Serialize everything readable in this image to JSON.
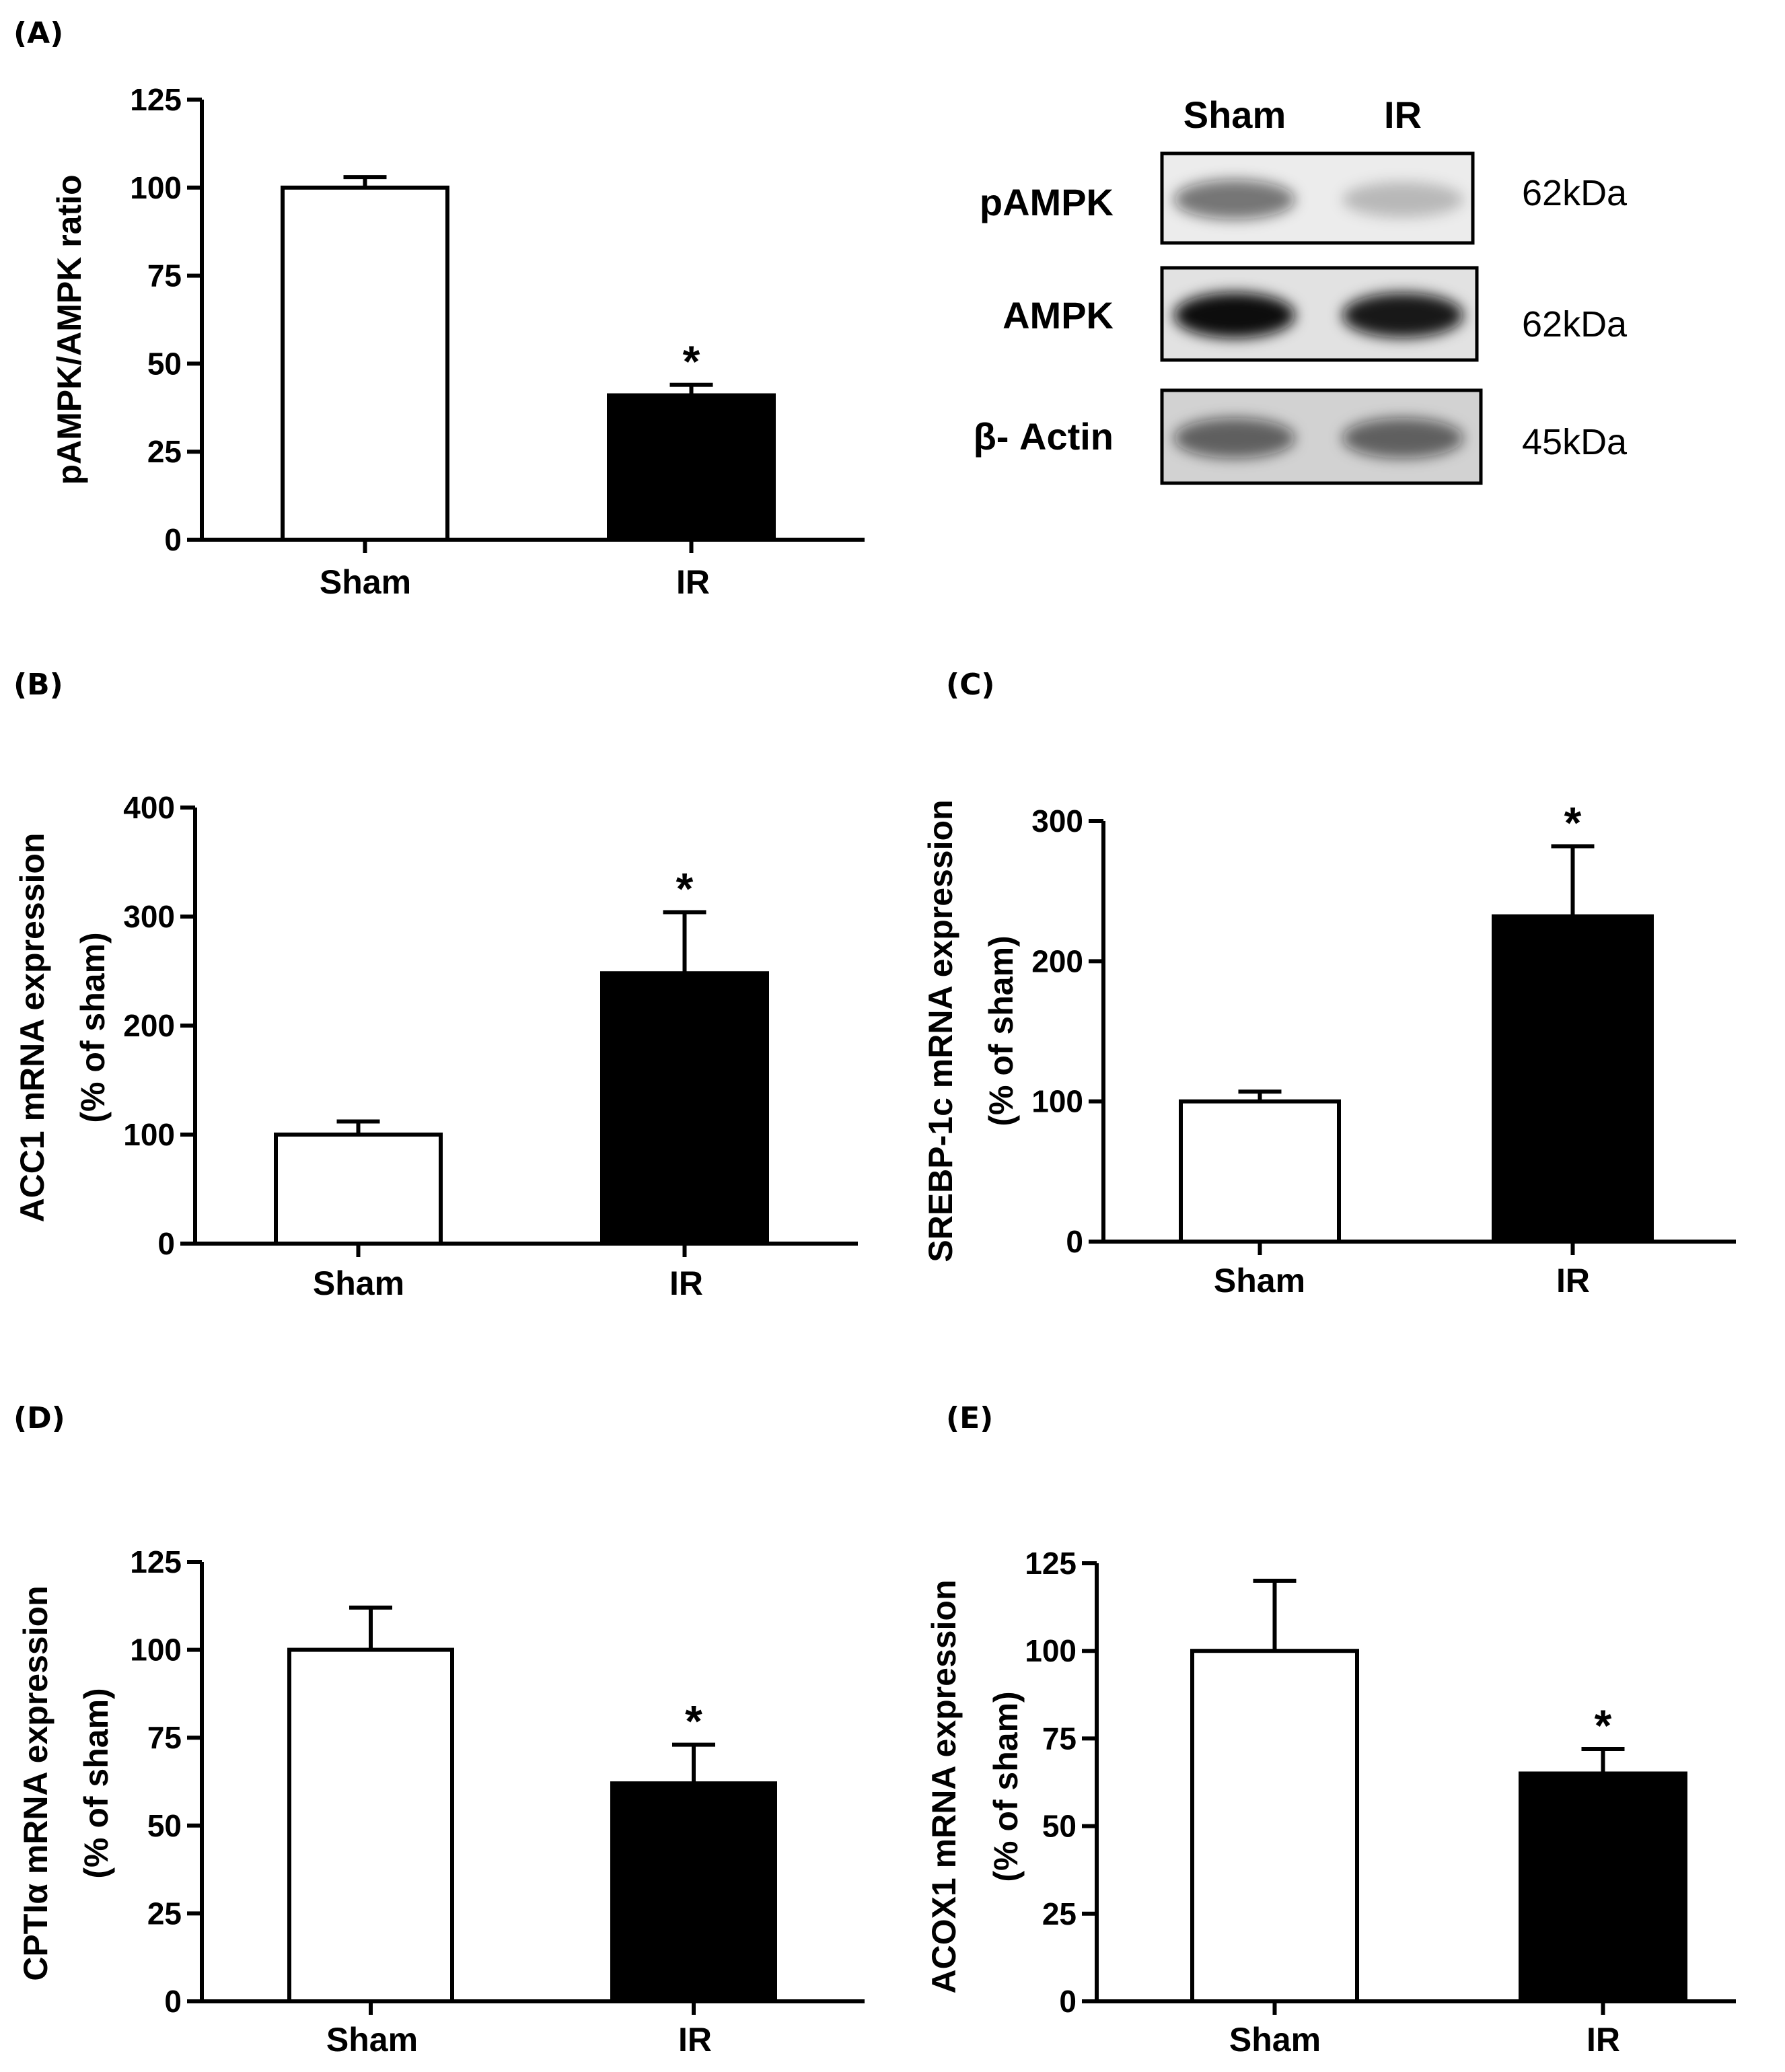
{
  "chart_data": [
    {
      "panel": "(A)",
      "type": "bar",
      "categories": [
        "Sham",
        "IR"
      ],
      "values": [
        100,
        41
      ],
      "errors": [
        3,
        3
      ],
      "significance": [
        "",
        "*"
      ],
      "bar_colors": [
        "#ffffff",
        "#000000"
      ],
      "ylabel": "pAMPK/AMPK ratio",
      "ylim": [
        0,
        125
      ],
      "yticks": [
        "0",
        "25",
        "50",
        "75",
        "100",
        "125"
      ],
      "ytick_values": [
        0,
        25,
        50,
        75,
        100,
        125
      ]
    },
    {
      "panel": "(B)",
      "type": "bar",
      "categories": [
        "Sham",
        "IR"
      ],
      "values": [
        100,
        248
      ],
      "errors": [
        12,
        56
      ],
      "significance": [
        "",
        "*"
      ],
      "bar_colors": [
        "#ffffff",
        "#000000"
      ],
      "ylabel": "ACC1 mRNA expression",
      "ylabel2": "(% of sham)",
      "ylim": [
        0,
        400
      ],
      "yticks": [
        "0",
        "100",
        "200",
        "300",
        "400"
      ],
      "ytick_values": [
        0,
        100,
        200,
        300,
        400
      ]
    },
    {
      "panel": "(C)",
      "type": "bar",
      "categories": [
        "Sham",
        "IR"
      ],
      "values": [
        100,
        232
      ],
      "errors": [
        7,
        50
      ],
      "significance": [
        "",
        "*"
      ],
      "bar_colors": [
        "#ffffff",
        "#000000"
      ],
      "ylabel": "SREBP-1c mRNA expression",
      "ylabel2": "(% of sham)",
      "ylim": [
        0,
        300
      ],
      "yticks": [
        "0",
        "100",
        "200",
        "300"
      ],
      "ytick_values": [
        0,
        100,
        200,
        300
      ]
    },
    {
      "panel": "(D)",
      "type": "bar",
      "categories": [
        "Sham",
        "IR"
      ],
      "values": [
        100,
        62
      ],
      "errors": [
        12,
        11
      ],
      "significance": [
        "",
        "*"
      ],
      "bar_colors": [
        "#ffffff",
        "#000000"
      ],
      "ylabel": "CPTIα mRNA expression",
      "ylabel2": "(% of sham)",
      "ylim": [
        0,
        125
      ],
      "yticks": [
        "0",
        "25",
        "50",
        "75",
        "100",
        "125"
      ],
      "ytick_values": [
        0,
        25,
        50,
        75,
        100,
        125
      ]
    },
    {
      "panel": "(E)",
      "type": "bar",
      "categories": [
        "Sham",
        "IR"
      ],
      "values": [
        100,
        65
      ],
      "errors": [
        20,
        7
      ],
      "significance": [
        "",
        "*"
      ],
      "bar_colors": [
        "#ffffff",
        "#000000"
      ],
      "ylabel": "ACOX1 mRNA expression",
      "ylabel2": "(% of sham)",
      "ylim": [
        0,
        125
      ],
      "yticks": [
        "0",
        "25",
        "50",
        "75",
        "100",
        "125"
      ],
      "ytick_values": [
        0,
        25,
        50,
        75,
        100,
        125
      ]
    }
  ],
  "western_blot": {
    "lanes": [
      "Sham",
      "IR"
    ],
    "rows": [
      {
        "protein": "pAMPK",
        "kda": "62kDa",
        "band_intensity": [
          0.55,
          0.22
        ]
      },
      {
        "protein": "AMPK",
        "kda": "62kDa",
        "band_intensity": [
          1.0,
          0.95
        ]
      },
      {
        "protein": "β- Actin",
        "kda": "45kDa",
        "band_intensity": [
          0.6,
          0.6
        ]
      }
    ]
  }
}
